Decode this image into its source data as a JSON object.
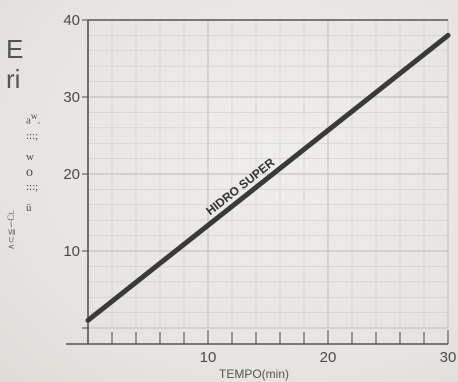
{
  "chart_data": {
    "type": "line",
    "title": "",
    "xlabel": "TEMPO(min)",
    "ylabel_fragments": [
      "E",
      "ri",
      "a",
      "w",
      ".",
      ":::;",
      "w",
      "o",
      ":::;",
      "ü",
      "∧⊂≦∽Ct."
    ],
    "xlim": [
      0,
      30
    ],
    "ylim": [
      0,
      40
    ],
    "x_ticks": [
      10,
      20,
      30
    ],
    "y_ticks": [
      10,
      20,
      30,
      40
    ],
    "grid": true,
    "series": [
      {
        "name": "HIDRO SUPER",
        "x": [
          0,
          30
        ],
        "y": [
          1,
          38
        ],
        "color": "#3a3a3a"
      }
    ]
  }
}
